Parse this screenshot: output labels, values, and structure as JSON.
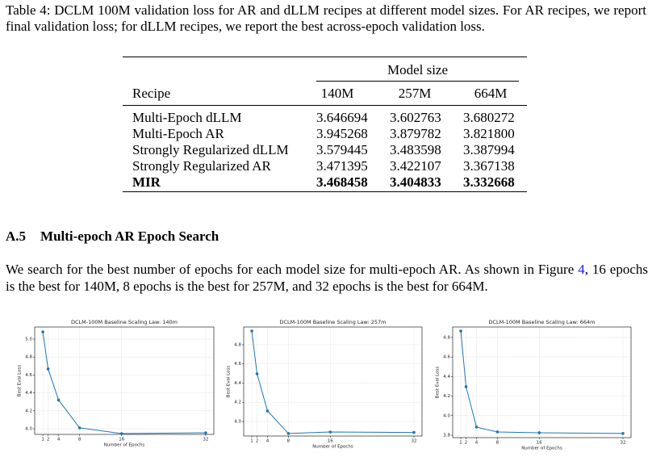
{
  "caption": "Table 4: DCLM 100M validation loss for AR and dLLM recipes at different model sizes. For AR recipes, we report final validation loss; for dLLM recipes, we report the best across-epoch validation loss.",
  "table": {
    "group_header": "Model size",
    "columns": [
      "Recipe",
      "140M",
      "257M",
      "664M"
    ],
    "rows": [
      [
        "Multi-Epoch dLLM",
        "3.646694",
        "3.602763",
        "3.680272"
      ],
      [
        "Multi-Epoch AR",
        "3.945268",
        "3.879782",
        "3.821800"
      ],
      [
        "Strongly Regularized dLLM",
        "3.579445",
        "3.483598",
        "3.387994"
      ],
      [
        "Strongly Regularized AR",
        "3.471395",
        "3.422107",
        "3.367138"
      ],
      [
        "MIR",
        "3.468458",
        "3.404833",
        "3.332668"
      ]
    ]
  },
  "section": {
    "number": "A.5",
    "title": "Multi-epoch AR Epoch Search"
  },
  "paragraph": {
    "before": "We search for the best number of epochs for each model size for multi-epoch AR. As shown in Figure",
    "link": "4",
    "after": ", 16 epochs is the best for 140M, 8 epochs is the best for 257M, and 32 epochs is the best for 664M."
  },
  "chart_data": [
    {
      "type": "line",
      "title": "DCLM-100M Baseline Scaling Law: 140m",
      "x_label": "Number of Epochs",
      "y_label": "Best Eval Loss",
      "x": [
        1,
        2,
        4,
        8,
        16,
        32
      ],
      "values": [
        5.08,
        4.667,
        4.32,
        4.01,
        3.946,
        3.955
      ],
      "color": "#1f77b4",
      "xlim": [
        -0.55,
        33.55
      ],
      "xticks": [
        1,
        2,
        4,
        8,
        16,
        32
      ],
      "ylim": [
        3.937,
        5.135
      ],
      "yticks": [
        {
          "value": 4,
          "label": "4.0"
        },
        4.2,
        4.4,
        4.6,
        4.8,
        {
          "value": 5,
          "label": "5.0"
        }
      ],
      "grid": true
    },
    {
      "type": "line",
      "title": "DCLM-100M Baseline Scaling Law: 257m",
      "x_label": "Number of Epochs",
      "y_label": "Best Eval Loss",
      "x": [
        1,
        2,
        4,
        8,
        16,
        32
      ],
      "values": [
        4.943,
        4.497,
        4.11,
        3.874,
        3.89,
        3.885
      ],
      "color": "#1f77b4",
      "xlim": [
        -0.55,
        33.55
      ],
      "xticks": [
        1,
        2,
        4,
        8,
        16,
        32
      ],
      "ylim": [
        3.848,
        4.985
      ],
      "yticks": [
        {
          "value": 4,
          "label": "4.0"
        },
        4.2,
        4.4,
        4.6,
        4.8
      ],
      "grid": true
    },
    {
      "type": "line",
      "title": "DCLM-100M Baseline Scaling Law: 664m",
      "x_label": "Number of Epochs",
      "y_label": "Best Eval Loss",
      "x": [
        1,
        2,
        4,
        8,
        16,
        32
      ],
      "values": [
        4.866,
        4.296,
        3.883,
        3.833,
        3.825,
        3.818
      ],
      "color": "#1f77b4",
      "xlim": [
        -0.55,
        33.55
      ],
      "xticks": [
        1,
        2,
        4,
        8,
        16,
        32
      ],
      "ylim": [
        3.775,
        4.907
      ],
      "yticks": [
        3.8,
        {
          "value": 4,
          "label": "4.0"
        },
        4.2,
        4.4,
        4.6,
        4.8
      ],
      "grid": true
    }
  ]
}
